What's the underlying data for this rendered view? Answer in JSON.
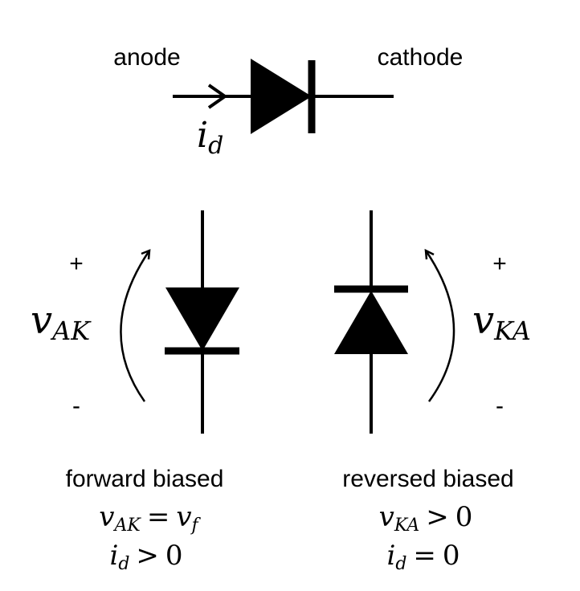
{
  "top_diode": {
    "anode_label": "anode",
    "cathode_label": "cathode",
    "current_var": "i",
    "current_sub": "d"
  },
  "forward": {
    "plus": "+",
    "minus": "-",
    "voltage_var": "v",
    "voltage_sub": "AK",
    "caption": "forward biased",
    "eq1": {
      "lhs_var": "v",
      "lhs_sub": "AK",
      "op": "=",
      "rhs_var": "v",
      "rhs_sub": "f"
    },
    "eq2": {
      "var": "i",
      "sub": "d",
      "op": ">",
      "val": "0"
    }
  },
  "reverse": {
    "plus": "+",
    "minus": "-",
    "voltage_var": "v",
    "voltage_sub": "KA",
    "caption": "reversed biased",
    "eq1": {
      "var": "v",
      "sub": "KA",
      "op": ">",
      "val": "0"
    },
    "eq2": {
      "var": "i",
      "sub": "d",
      "op": "=",
      "val": "0"
    }
  }
}
